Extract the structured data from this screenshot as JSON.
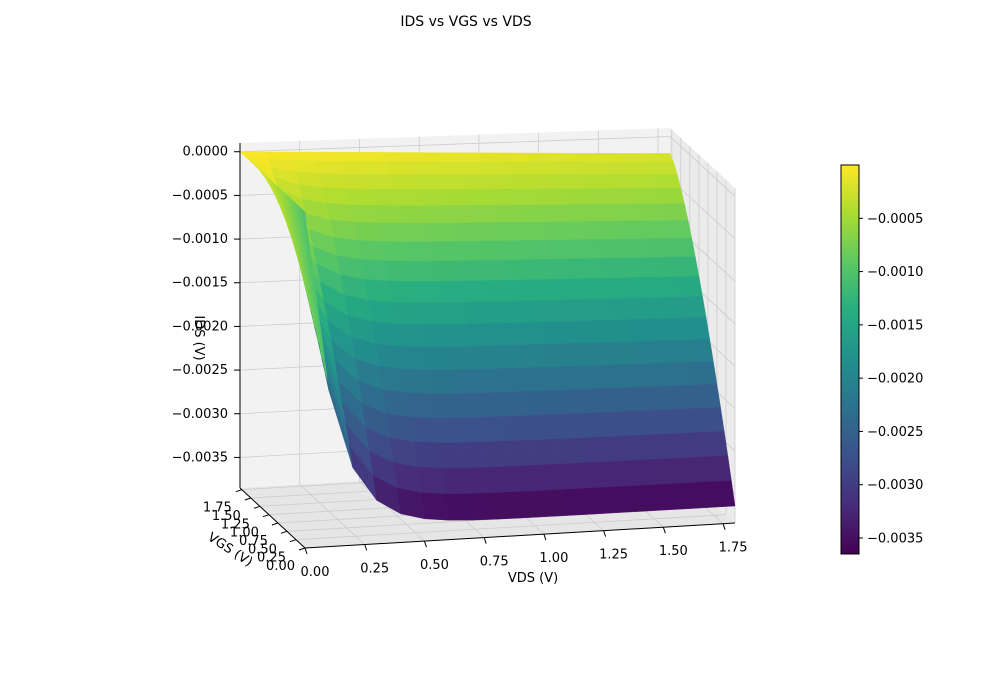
{
  "chart_data": {
    "type": "surface",
    "title": "IDS vs VGS vs VDS",
    "xlabel": "VDS (V)",
    "ylabel": "VGS (V)",
    "zlabel": "IDS (V)",
    "xlim": [
      0,
      1.8
    ],
    "ylim": [
      0,
      1.8
    ],
    "zlim": [
      -0.00385,
      0.0001
    ],
    "x_ticks": [
      "0.00",
      "0.25",
      "0.50",
      "0.75",
      "1.00",
      "1.25",
      "1.50",
      "1.75"
    ],
    "y_ticks": [
      "0.00",
      "0.25",
      "0.50",
      "0.75",
      "1.00",
      "1.25",
      "1.50",
      "1.75"
    ],
    "z_ticks": [
      "−0.0035",
      "−0.0030",
      "−0.0025",
      "−0.0020",
      "−0.0015",
      "−0.0010",
      "−0.0005",
      "0.0000"
    ],
    "colorbar": {
      "colormap": "viridis",
      "range": [
        -0.00365,
        0.0
      ],
      "ticks": [
        "−0.0035",
        "−0.0030",
        "−0.0025",
        "−0.0020",
        "−0.0015",
        "−0.0010",
        "−0.0005"
      ]
    },
    "grid": true,
    "surface": {
      "vds_range": [
        0,
        1.8
      ],
      "vgs_range": [
        0,
        1.8
      ],
      "ids_min": -0.00365,
      "ids_at_vgs_max_vds_max": -0.0002,
      "grid_size": 19
    }
  }
}
